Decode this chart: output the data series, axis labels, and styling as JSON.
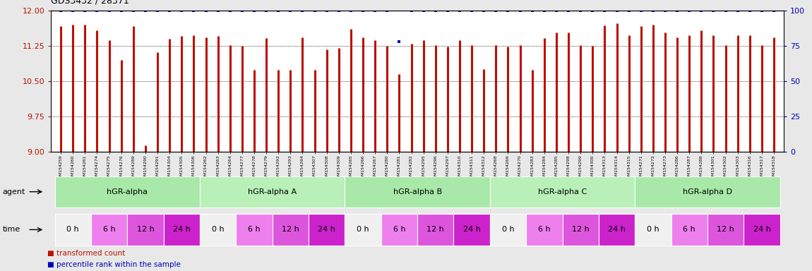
{
  "title": "GDS3432 / 28371",
  "samples": [
    "GSM154259",
    "GSM154260",
    "GSM154261",
    "GSM154274",
    "GSM154275",
    "GSM154276",
    "GSM154289",
    "GSM154290",
    "GSM154291",
    "GSM154304",
    "GSM154305",
    "GSM154306",
    "GSM154262",
    "GSM154263",
    "GSM154264",
    "GSM154277",
    "GSM154278",
    "GSM154279",
    "GSM154292",
    "GSM154293",
    "GSM154294",
    "GSM154307",
    "GSM154308",
    "GSM154309",
    "GSM154265",
    "GSM154266",
    "GSM154267",
    "GSM154280",
    "GSM154281",
    "GSM154282",
    "GSM154295",
    "GSM154296",
    "GSM154297",
    "GSM154310",
    "GSM154311",
    "GSM154312",
    "GSM154268",
    "GSM154269",
    "GSM154270",
    "GSM154283",
    "GSM154284",
    "GSM154285",
    "GSM154298",
    "GSM154299",
    "GSM154300",
    "GSM154313",
    "GSM154314",
    "GSM154315",
    "GSM154271",
    "GSM154272",
    "GSM154273",
    "GSM154286",
    "GSM154287",
    "GSM154288",
    "GSM154301",
    "GSM154302",
    "GSM154303",
    "GSM154316",
    "GSM154317",
    "GSM154318"
  ],
  "bar_values": [
    11.68,
    11.7,
    11.7,
    11.58,
    11.37,
    10.95,
    11.68,
    9.13,
    11.12,
    11.41,
    11.47,
    11.48,
    11.44,
    11.46,
    11.27,
    11.25,
    10.75,
    11.42,
    10.75,
    10.75,
    11.43,
    10.75,
    11.18,
    11.21,
    11.62,
    11.44,
    11.38,
    11.25,
    10.66,
    11.3,
    11.38,
    11.27,
    11.24,
    11.38,
    11.27,
    10.76,
    11.27,
    11.24,
    11.27,
    10.75,
    11.42,
    11.54,
    11.54,
    11.27,
    11.26,
    11.69,
    11.74,
    11.48,
    11.68,
    11.7,
    11.54,
    11.43,
    11.48,
    11.58,
    11.48,
    11.27,
    11.48,
    11.48,
    11.27,
    11.43
  ],
  "dot_values": [
    100,
    100,
    100,
    100,
    100,
    100,
    100,
    100,
    100,
    100,
    100,
    100,
    100,
    100,
    100,
    100,
    100,
    100,
    100,
    100,
    100,
    100,
    100,
    100,
    100,
    100,
    100,
    100,
    78,
    100,
    100,
    100,
    100,
    100,
    100,
    100,
    100,
    100,
    100,
    100,
    100,
    100,
    100,
    100,
    100,
    100,
    100,
    100,
    100,
    100,
    100,
    100,
    100,
    100,
    100,
    100,
    100,
    100,
    100,
    100
  ],
  "ylim": [
    9.0,
    12.0
  ],
  "y2lim": [
    0,
    100
  ],
  "yticks": [
    9.0,
    9.75,
    10.5,
    11.25,
    12.0
  ],
  "y2ticks": [
    0,
    25,
    50,
    75,
    100
  ],
  "bar_color": "#bb1100",
  "dot_color": "#0000bb",
  "agents": [
    {
      "label": "hGR-alpha",
      "start": 0,
      "end": 12,
      "color": "#a8e8a8"
    },
    {
      "label": "hGR-alpha A",
      "start": 12,
      "end": 24,
      "color": "#b8f0b8"
    },
    {
      "label": "hGR-alpha B",
      "start": 24,
      "end": 36,
      "color": "#a8e8a8"
    },
    {
      "label": "hGR-alpha C",
      "start": 36,
      "end": 48,
      "color": "#b8f0b8"
    },
    {
      "label": "hGR-alpha D",
      "start": 48,
      "end": 60,
      "color": "#a8e8a8"
    }
  ],
  "time_colors": [
    "#f0f0f0",
    "#ee80ee",
    "#dd55dd",
    "#cc22cc"
  ],
  "time_agent_colors": [
    "#b0e8b0",
    "#c0f0c0"
  ],
  "legend_bar_label": "transformed count",
  "legend_dot_label": "percentile rank within the sample",
  "bg_color": "#e8e8e8",
  "plot_bg": "#ffffff"
}
